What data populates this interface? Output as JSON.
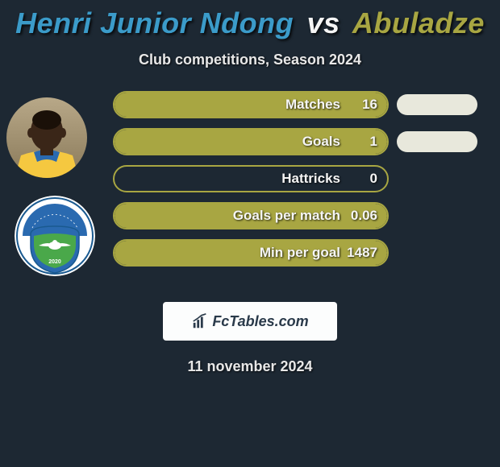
{
  "title": {
    "player1": "Henri Junior Ndong",
    "vs": "vs",
    "player2": "Abuladze",
    "player1_color": "#3b9bc9",
    "player2_color": "#a8a642",
    "vs_color": "#f5f5f5"
  },
  "subtitle": "Club competitions, Season 2024",
  "date": "11 november 2024",
  "logo": {
    "text": "FcTables.com"
  },
  "colors": {
    "background": "#1d2833",
    "bar_border": "#a8a642",
    "bar_fill": "#a8a642",
    "right_pill": "#e8e8dc",
    "text": "#f5f5f5"
  },
  "stats": [
    {
      "label": "Matches",
      "p1_value": "16",
      "p1_fill": 1.0,
      "p2_show": true
    },
    {
      "label": "Goals",
      "p1_value": "1",
      "p1_fill": 1.0,
      "p2_show": true
    },
    {
      "label": "Hattricks",
      "p1_value": "0",
      "p1_fill": 0.0,
      "p2_show": false
    },
    {
      "label": "Goals per match",
      "p1_value": "0.06",
      "p1_fill": 1.0,
      "p2_show": false
    },
    {
      "label": "Min per goal",
      "p1_value": "1487",
      "p1_fill": 1.0,
      "p2_show": false
    }
  ],
  "avatars": {
    "player": {
      "bg_top": "#b8a888",
      "bg_bottom": "#8a7a5a",
      "skin": "#3a2618",
      "jersey_main": "#f5c840",
      "jersey_accent": "#2a6ab0"
    },
    "club": {
      "ring": "#ffffff",
      "outline": "#1a5a90",
      "shield_top": "#2a6ab0",
      "shield_mid": "#4aa84a",
      "bird": "#ffffff",
      "text_color": "#ffffff"
    }
  }
}
